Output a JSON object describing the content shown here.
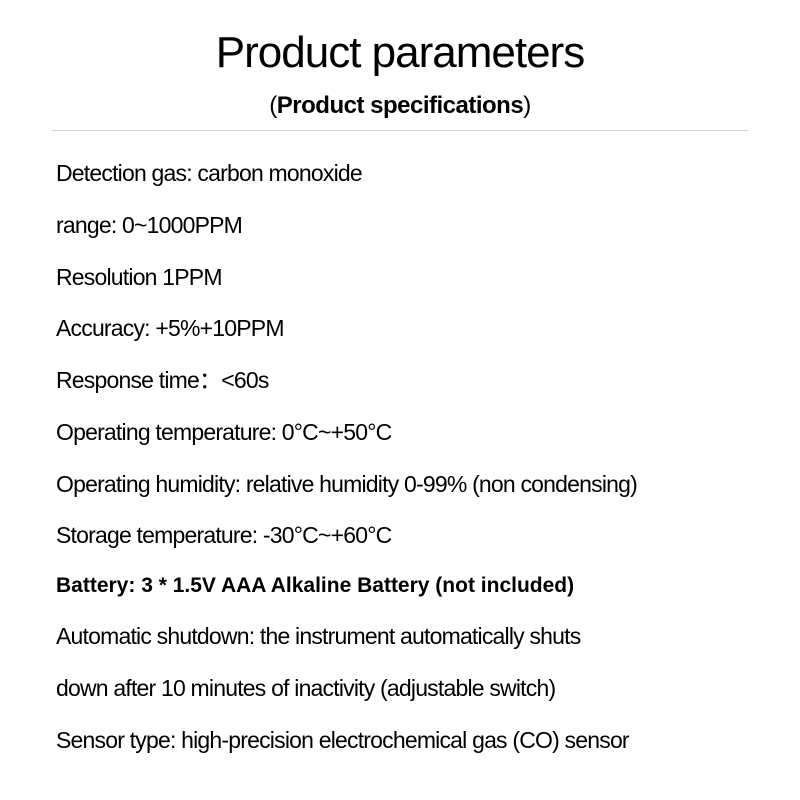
{
  "heading": "Product parameters",
  "subheading_open": "(",
  "subheading_inner": "Product specifications",
  "subheading_close": ")",
  "colors": {
    "background": "#ffffff",
    "text": "#000000",
    "divider": "#d0d0d0"
  },
  "typography": {
    "heading_fontsize": 44,
    "heading_weight": 300,
    "subheading_fontsize": 24,
    "spec_fontsize": 23,
    "spec_bold_fontsize": 21,
    "line_spacing": 23
  },
  "specs": [
    {
      "text": "Detection gas: carbon monoxide",
      "bold": false
    },
    {
      "text": "range: 0~1000PPM",
      "bold": false
    },
    {
      "text": "Resolution 1PPM",
      "bold": false
    },
    {
      "text": "Accuracy: +5%+10PPM",
      "bold": false
    },
    {
      "text": "Response time：<60s",
      "bold": false
    },
    {
      "text": "Operating temperature: 0°C~+50°C",
      "bold": false
    },
    {
      "text": "Operating humidity: relative humidity 0-99% (non condensing)",
      "bold": false
    },
    {
      "text": "Storage temperature: -30°C~+60°C",
      "bold": false
    },
    {
      "text": "Battery: 3 * 1.5V AAA Alkaline Battery (not included)",
      "bold": true
    },
    {
      "text": "Automatic shutdown: the instrument automatically shuts",
      "bold": false
    },
    {
      "text": "down after 10 minutes of inactivity (adjustable switch)",
      "bold": false
    },
    {
      "text": "Sensor type: high-precision electrochemical gas (CO) sensor",
      "bold": false
    }
  ]
}
